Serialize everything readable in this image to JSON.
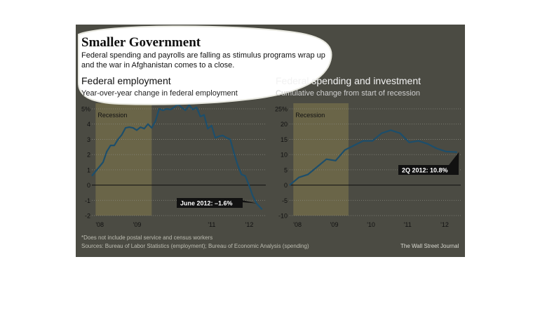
{
  "header": {
    "title": "Smaller Government",
    "subtitle_line1": "Federal spending and payrolls are falling as stimulus programs wrap up",
    "subtitle_line2": "and the war in Afghanistan comes to a close."
  },
  "footer": {
    "footnote": "*Does not include postal service and census workers",
    "sources": "Sources: Bureau of Labor Statistics (employment); Bureau of Economic Analysis (spending)",
    "credit": "The Wall Street Journal"
  },
  "colors": {
    "panel": "#4b4b43",
    "line": "#1d4e6b",
    "recession": "#6a6548",
    "highlight": "#ffffff"
  },
  "chart_data": [
    {
      "type": "line",
      "title": "Federal employment",
      "subtitle": "Year-over-year change in federal employment",
      "recession_label": "Recession",
      "recession": [
        2008.0,
        2009.5
      ],
      "xlim": [
        2007.9,
        2012.55
      ],
      "ylim": [
        -2,
        5
      ],
      "y_ticks": [
        5,
        4,
        3,
        2,
        1,
        0,
        -1,
        -2
      ],
      "y_tick_labels": [
        "5%",
        "4",
        "3",
        "2",
        "1",
        "0",
        "-1",
        "-2"
      ],
      "x_ticks": [
        2008,
        2009,
        2011,
        2012
      ],
      "x_tick_labels": [
        "'08",
        "'09",
        "'11",
        "'12"
      ],
      "annotation": "June 2012: –1.6%",
      "series": [
        {
          "x": [
            2007.9,
            2008.0,
            2008.1,
            2008.2,
            2008.3,
            2008.4,
            2008.5,
            2008.6,
            2008.7,
            2008.8,
            2008.9,
            2009.0,
            2009.1,
            2009.2,
            2009.3,
            2009.4,
            2009.5,
            2009.6,
            2009.7,
            2009.8,
            2009.9,
            2010.0,
            2010.1,
            2010.2,
            2010.3,
            2010.4,
            2010.5,
            2010.6,
            2010.7,
            2010.8,
            2010.9,
            2011.0,
            2011.1,
            2011.2,
            2011.3,
            2011.4,
            2011.5,
            2011.6,
            2011.7,
            2011.8,
            2011.9,
            2012.0,
            2012.1,
            2012.2,
            2012.3,
            2012.45
          ],
          "y": [
            0.6,
            0.9,
            1.2,
            1.5,
            2.2,
            2.6,
            2.6,
            3.0,
            3.3,
            3.75,
            3.8,
            3.75,
            3.6,
            3.8,
            3.7,
            4.0,
            3.75,
            4.2,
            5.0,
            4.9,
            5.0,
            4.95,
            5.1,
            5.3,
            5.1,
            4.9,
            5.25,
            4.95,
            5.1,
            4.5,
            4.6,
            3.7,
            3.9,
            3.1,
            3.2,
            3.25,
            3.1,
            3.0,
            2.1,
            1.3,
            0.7,
            0.6,
            0.0,
            -0.7,
            -1.2,
            -1.6
          ]
        }
      ]
    },
    {
      "type": "line",
      "title": "Federal spending and investment",
      "subtitle": "Cumulative change from start of recession",
      "recession_label": "Recession",
      "recession": [
        2008.0,
        2009.5
      ],
      "xlim": [
        2007.9,
        2012.55
      ],
      "ylim": [
        -10,
        25
      ],
      "y_ticks": [
        25,
        20,
        15,
        10,
        5,
        0,
        -5,
        -10
      ],
      "y_tick_labels": [
        "25%",
        "20",
        "15",
        "10",
        "5",
        "0",
        "-5",
        "-10"
      ],
      "x_ticks": [
        2008,
        2009,
        2010,
        2011,
        2012
      ],
      "x_tick_labels": [
        "'08",
        "'09",
        "'10",
        "'11",
        "'12"
      ],
      "annotation": "2Q 2012: 10.8%",
      "series": [
        {
          "x": [
            2007.9,
            2008.15,
            2008.4,
            2008.65,
            2008.9,
            2009.15,
            2009.4,
            2009.65,
            2009.9,
            2010.15,
            2010.4,
            2010.65,
            2010.9,
            2011.15,
            2011.4,
            2011.65,
            2011.9,
            2012.15,
            2012.45
          ],
          "y": [
            0,
            2.5,
            3.5,
            6,
            8.5,
            8,
            11.5,
            13,
            14.5,
            14.5,
            17,
            18,
            17,
            14,
            14.5,
            13.5,
            12,
            11,
            10.8
          ]
        }
      ]
    }
  ]
}
